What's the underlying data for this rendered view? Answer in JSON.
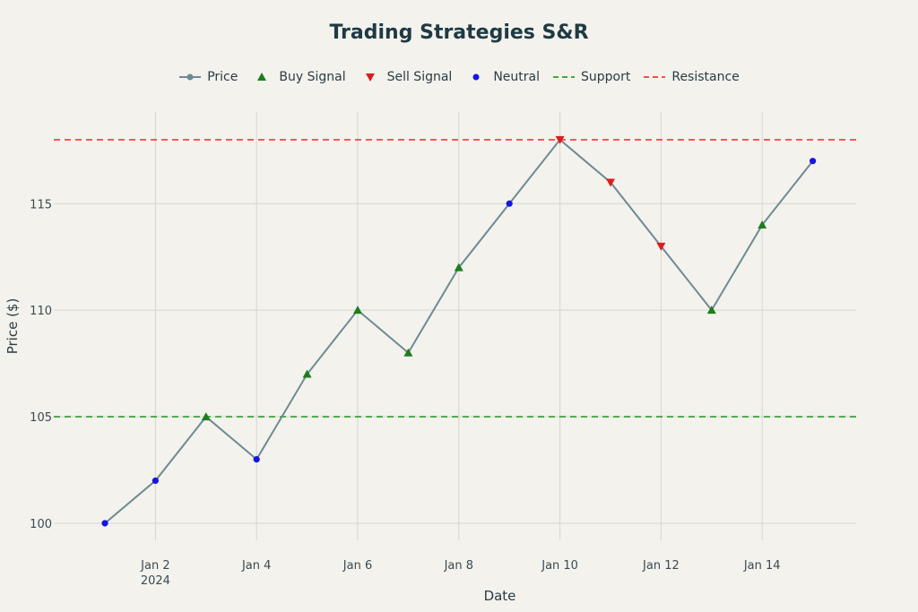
{
  "chart_data": {
    "type": "line",
    "title": "Trading Strategies S&R",
    "xlabel": "Date",
    "ylabel": "Price ($)",
    "x": [
      "2024-01-01",
      "2024-01-02",
      "2024-01-03",
      "2024-01-04",
      "2024-01-05",
      "2024-01-06",
      "2024-01-07",
      "2024-01-08",
      "2024-01-09",
      "2024-01-10",
      "2024-01-11",
      "2024-01-12",
      "2024-01-13",
      "2024-01-14",
      "2024-01-15"
    ],
    "series": [
      {
        "name": "Price",
        "values": [
          100,
          102,
          105,
          103,
          107,
          110,
          108,
          112,
          115,
          118,
          116,
          113,
          110,
          114,
          117
        ],
        "color": "#6e8a92"
      }
    ],
    "signals": [
      "Neutral",
      "Neutral",
      "Buy",
      "Neutral",
      "Buy",
      "Buy",
      "Buy",
      "Buy",
      "Neutral",
      "Sell",
      "Sell",
      "Sell",
      "Buy",
      "Buy",
      "Neutral"
    ],
    "support": 105,
    "resistance": 118,
    "legend": [
      {
        "name": "Price",
        "kind": "line-marker",
        "color": "#6e8a92"
      },
      {
        "name": "Buy Signal",
        "kind": "triangle-up",
        "color": "#1e7d1e"
      },
      {
        "name": "Sell Signal",
        "kind": "triangle-down",
        "color": "#e01b1b"
      },
      {
        "name": "Neutral",
        "kind": "dot",
        "color": "#1515e0"
      },
      {
        "name": "Support",
        "kind": "dash",
        "color": "#2f9a2f"
      },
      {
        "name": "Resistance",
        "kind": "dash",
        "color": "#ee3b3b"
      }
    ],
    "legend_position": "top",
    "ylim": [
      99.2,
      119.3
    ],
    "yticks": [
      100,
      105,
      110,
      115
    ],
    "xticks": [
      {
        "date": "2024-01-02",
        "label": "Jan 2",
        "sublabel": "2024"
      },
      {
        "date": "2024-01-04",
        "label": "Jan 4",
        "sublabel": ""
      },
      {
        "date": "2024-01-06",
        "label": "Jan 6",
        "sublabel": ""
      },
      {
        "date": "2024-01-08",
        "label": "Jan 8",
        "sublabel": ""
      },
      {
        "date": "2024-01-10",
        "label": "Jan 10",
        "sublabel": ""
      },
      {
        "date": "2024-01-12",
        "label": "Jan 12",
        "sublabel": ""
      },
      {
        "date": "2024-01-14",
        "label": "Jan 14",
        "sublabel": ""
      }
    ],
    "grid": true
  }
}
